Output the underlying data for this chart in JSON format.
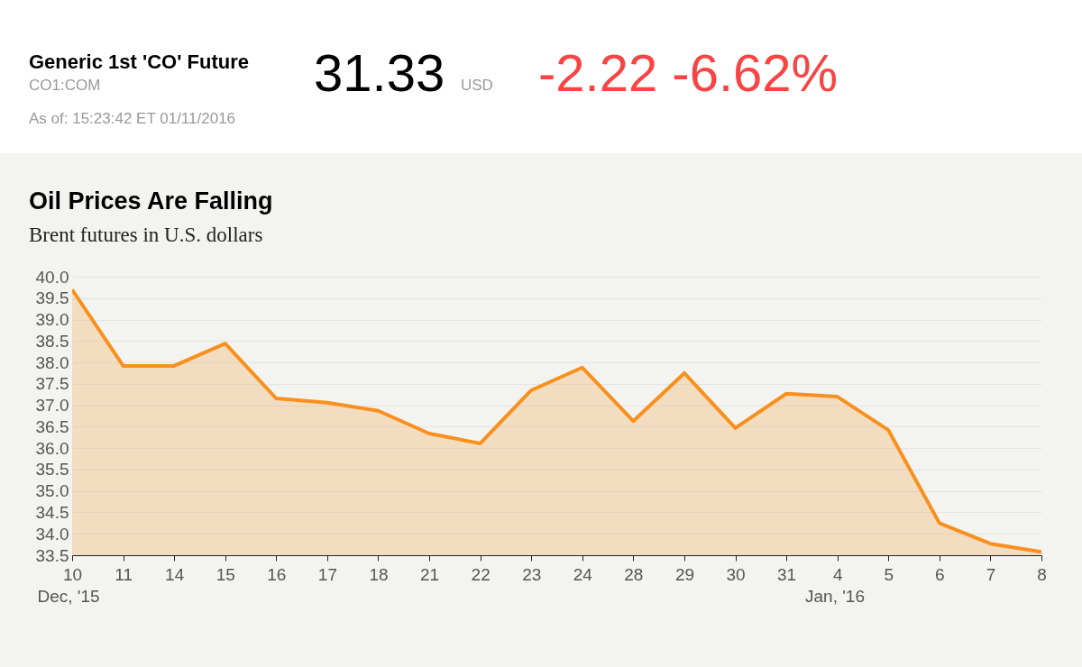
{
  "chart_data": {
    "type": "area",
    "title": "Oil Prices Are Falling",
    "subtitle": "Brent futures in U.S. dollars",
    "categories": [
      "10",
      "11",
      "14",
      "15",
      "16",
      "17",
      "18",
      "21",
      "22",
      "23",
      "24",
      "28",
      "29",
      "30",
      "31",
      "4",
      "5",
      "6",
      "7",
      "8"
    ],
    "series": [
      {
        "color": "#f7901e",
        "values": [
          39.7,
          37.92,
          37.92,
          38.44,
          37.16,
          37.06,
          36.87,
          36.34,
          36.11,
          37.35,
          37.88,
          36.63,
          37.75,
          36.47,
          37.27,
          37.2,
          36.42,
          34.25,
          33.77,
          33.58
        ]
      }
    ],
    "ylim": [
      33.5,
      40
    ],
    "yticks": [
      {
        "value": 33.5,
        "label": "33.5"
      },
      {
        "value": 34,
        "label": "34.0"
      },
      {
        "value": 34.5,
        "label": "34.5"
      },
      {
        "value": 35,
        "label": "35.0"
      },
      {
        "value": 35.5,
        "label": "35.5"
      },
      {
        "value": 36,
        "label": "36.0"
      },
      {
        "value": 36.5,
        "label": "36.5"
      },
      {
        "value": 37,
        "label": "37.0"
      },
      {
        "value": 37.5,
        "label": "37.5"
      },
      {
        "value": 38,
        "label": "38.0"
      },
      {
        "value": 38.5,
        "label": "38.5"
      },
      {
        "value": 39,
        "label": "39.0"
      },
      {
        "value": 39.5,
        "label": "39.5"
      },
      {
        "value": 40,
        "label": "40.0"
      }
    ],
    "grid": "y",
    "annotations": [
      "Generic 1st 'CO' Future",
      "CO1:COM",
      "As of: 15:23:42 ET 01/11/2016",
      "31.33",
      "USD",
      "-2.22 -6.62%",
      "Dec, '15",
      "Jan, '16"
    ]
  }
}
